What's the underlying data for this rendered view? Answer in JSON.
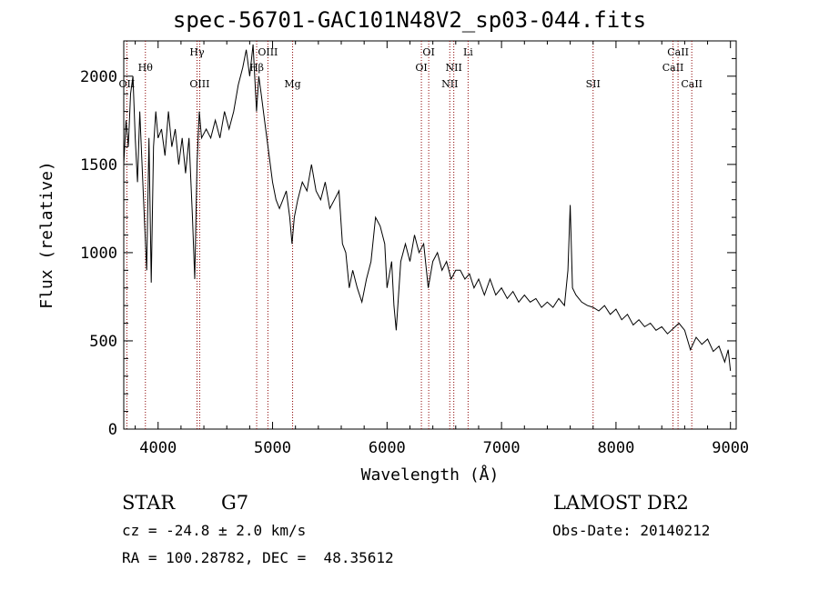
{
  "chart_data": {
    "type": "line",
    "title": "spec-56701-GAC101N48V2_sp03-044.fits",
    "xlabel": "Wavelength (Å)",
    "ylabel": "Flux (relative)",
    "xlim": [
      3700,
      9050
    ],
    "ylim": [
      0,
      2200
    ],
    "x_ticks": [
      4000,
      5000,
      6000,
      7000,
      8000,
      9000
    ],
    "y_ticks": [
      0,
      500,
      1000,
      1500,
      2000
    ],
    "grid": false,
    "series": [
      {
        "values": [
          [
            3700,
            1500
          ],
          [
            3720,
            1750
          ],
          [
            3740,
            1600
          ],
          [
            3760,
            1900
          ],
          [
            3780,
            2000
          ],
          [
            3800,
            1650
          ],
          [
            3820,
            1400
          ],
          [
            3840,
            1800
          ],
          [
            3860,
            1500
          ],
          [
            3880,
            1200
          ],
          [
            3900,
            900
          ],
          [
            3920,
            1650
          ],
          [
            3940,
            830
          ],
          [
            3960,
            1600
          ],
          [
            3980,
            1800
          ],
          [
            4000,
            1650
          ],
          [
            4030,
            1700
          ],
          [
            4060,
            1550
          ],
          [
            4090,
            1800
          ],
          [
            4120,
            1600
          ],
          [
            4150,
            1700
          ],
          [
            4180,
            1500
          ],
          [
            4210,
            1650
          ],
          [
            4240,
            1450
          ],
          [
            4270,
            1650
          ],
          [
            4300,
            1200
          ],
          [
            4320,
            850
          ],
          [
            4340,
            1500
          ],
          [
            4360,
            1800
          ],
          [
            4380,
            1650
          ],
          [
            4420,
            1700
          ],
          [
            4460,
            1650
          ],
          [
            4500,
            1750
          ],
          [
            4540,
            1650
          ],
          [
            4580,
            1800
          ],
          [
            4620,
            1700
          ],
          [
            4660,
            1800
          ],
          [
            4700,
            1950
          ],
          [
            4740,
            2050
          ],
          [
            4770,
            2150
          ],
          [
            4800,
            2000
          ],
          [
            4830,
            2180
          ],
          [
            4860,
            1800
          ],
          [
            4880,
            2000
          ],
          [
            4900,
            1900
          ],
          [
            4930,
            1750
          ],
          [
            4960,
            1600
          ],
          [
            5000,
            1400
          ],
          [
            5030,
            1300
          ],
          [
            5060,
            1250
          ],
          [
            5090,
            1300
          ],
          [
            5120,
            1350
          ],
          [
            5150,
            1200
          ],
          [
            5170,
            1050
          ],
          [
            5190,
            1200
          ],
          [
            5220,
            1300
          ],
          [
            5260,
            1400
          ],
          [
            5300,
            1350
          ],
          [
            5340,
            1500
          ],
          [
            5380,
            1350
          ],
          [
            5420,
            1300
          ],
          [
            5460,
            1400
          ],
          [
            5500,
            1250
          ],
          [
            5540,
            1300
          ],
          [
            5580,
            1350
          ],
          [
            5610,
            1050
          ],
          [
            5640,
            1000
          ],
          [
            5670,
            800
          ],
          [
            5700,
            900
          ],
          [
            5740,
            800
          ],
          [
            5780,
            720
          ],
          [
            5820,
            850
          ],
          [
            5860,
            950
          ],
          [
            5900,
            1200
          ],
          [
            5940,
            1150
          ],
          [
            5980,
            1050
          ],
          [
            6000,
            800
          ],
          [
            6040,
            950
          ],
          [
            6060,
            700
          ],
          [
            6080,
            560
          ],
          [
            6120,
            950
          ],
          [
            6160,
            1050
          ],
          [
            6200,
            950
          ],
          [
            6240,
            1100
          ],
          [
            6280,
            1000
          ],
          [
            6320,
            1050
          ],
          [
            6360,
            800
          ],
          [
            6400,
            950
          ],
          [
            6440,
            1000
          ],
          [
            6480,
            900
          ],
          [
            6520,
            950
          ],
          [
            6560,
            850
          ],
          [
            6600,
            900
          ],
          [
            6640,
            900
          ],
          [
            6680,
            850
          ],
          [
            6720,
            880
          ],
          [
            6760,
            800
          ],
          [
            6800,
            850
          ],
          [
            6850,
            760
          ],
          [
            6900,
            850
          ],
          [
            6950,
            760
          ],
          [
            7000,
            800
          ],
          [
            7050,
            740
          ],
          [
            7100,
            780
          ],
          [
            7150,
            720
          ],
          [
            7200,
            760
          ],
          [
            7250,
            720
          ],
          [
            7300,
            740
          ],
          [
            7350,
            690
          ],
          [
            7400,
            720
          ],
          [
            7450,
            690
          ],
          [
            7500,
            740
          ],
          [
            7550,
            700
          ],
          [
            7580,
            900
          ],
          [
            7600,
            1270
          ],
          [
            7620,
            800
          ],
          [
            7650,
            760
          ],
          [
            7700,
            720
          ],
          [
            7750,
            700
          ],
          [
            7800,
            690
          ],
          [
            7850,
            670
          ],
          [
            7900,
            700
          ],
          [
            7950,
            650
          ],
          [
            8000,
            680
          ],
          [
            8050,
            620
          ],
          [
            8100,
            650
          ],
          [
            8150,
            590
          ],
          [
            8200,
            620
          ],
          [
            8250,
            580
          ],
          [
            8300,
            600
          ],
          [
            8350,
            560
          ],
          [
            8400,
            580
          ],
          [
            8450,
            540
          ],
          [
            8500,
            570
          ],
          [
            8550,
            600
          ],
          [
            8600,
            560
          ],
          [
            8650,
            450
          ],
          [
            8700,
            520
          ],
          [
            8750,
            480
          ],
          [
            8800,
            510
          ],
          [
            8850,
            440
          ],
          [
            8900,
            470
          ],
          [
            8950,
            380
          ],
          [
            8980,
            450
          ],
          [
            9000,
            330
          ]
        ]
      }
    ],
    "line_markers": [
      {
        "wavelength": 3727,
        "label": "OII",
        "tier": "low"
      },
      {
        "wavelength": 3889,
        "label": "Hθ",
        "tier": "mid"
      },
      {
        "wavelength": 4340,
        "label": "Hγ",
        "tier": "top"
      },
      {
        "wavelength": 4363,
        "label": "OIII",
        "tier": "low"
      },
      {
        "wavelength": 4861,
        "label": "Hβ",
        "tier": "mid"
      },
      {
        "wavelength": 4959,
        "label": "OIII",
        "tier": "top"
      },
      {
        "wavelength": 5175,
        "label": "Mg",
        "tier": "low"
      },
      {
        "wavelength": 6300,
        "label": "OI",
        "tier": "mid"
      },
      {
        "wavelength": 6364,
        "label": "OI",
        "tier": "top"
      },
      {
        "wavelength": 6548,
        "label": "NII",
        "tier": "low"
      },
      {
        "wavelength": 6583,
        "label": "NII",
        "tier": "mid"
      },
      {
        "wavelength": 6708,
        "label": "Li",
        "tier": "top"
      },
      {
        "wavelength": 7800,
        "label": "SII",
        "tier": "low"
      },
      {
        "wavelength": 8498,
        "label": "CaII",
        "tier": "mid"
      },
      {
        "wavelength": 8542,
        "label": "CaII",
        "tier": "top"
      },
      {
        "wavelength": 8662,
        "label": "CaII",
        "tier": "low"
      }
    ]
  },
  "info": {
    "class": "STAR",
    "subclass": "G7",
    "survey": "LAMOST DR2",
    "redshift": "cz = -24.8 ± 2.0 km/s",
    "obs_date": "Obs-Date: 20140212",
    "coords": "RA = 100.28782, DEC =  48.35612"
  },
  "colors": {
    "line": "#000000",
    "marker": "#8b0000",
    "axis": "#000000"
  }
}
